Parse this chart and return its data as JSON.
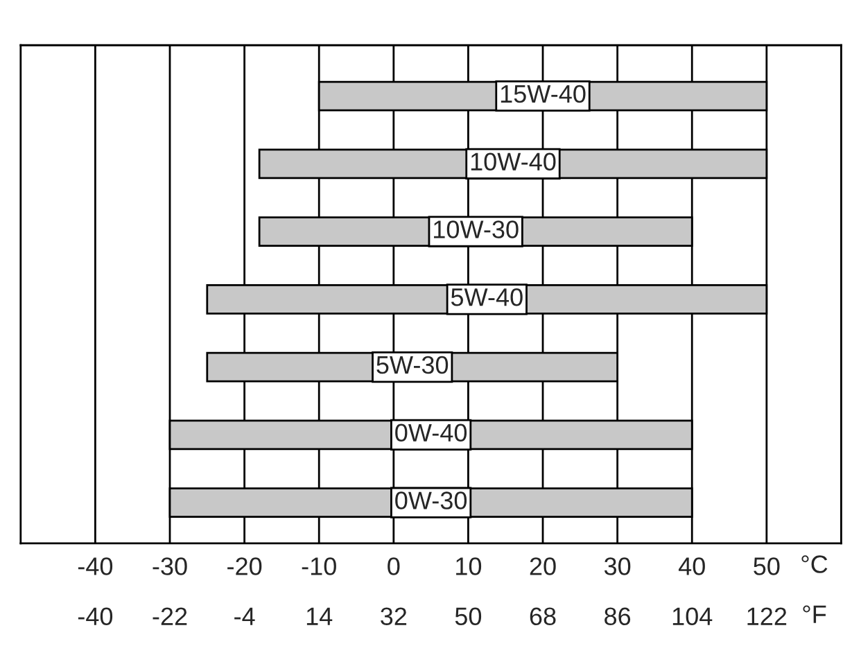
{
  "chart_data": {
    "type": "bar",
    "orientation": "horizontal",
    "xlabel": "°C",
    "x2label": "°F",
    "categories": [
      "15W-40",
      "10W-40",
      "10W-30",
      "5W-40",
      "5W-30",
      "0W-40",
      "0W-30"
    ],
    "base": [
      -10,
      -18,
      -18,
      -25,
      -25,
      -30,
      -30
    ],
    "values": [
      60,
      68,
      58,
      75,
      55,
      70,
      70
    ],
    "color": "#c8c8c8",
    "xlim": [
      -50,
      60
    ],
    "xticks": [
      -40,
      -30,
      -20,
      -10,
      0,
      10,
      20,
      30,
      40,
      50
    ],
    "x2lim": [
      -58,
      140
    ],
    "x2ticks": [
      -40,
      -22,
      -4,
      14,
      32,
      50,
      68,
      86,
      104,
      122
    ],
    "grid": "x",
    "tick_labels": "x"
  }
}
